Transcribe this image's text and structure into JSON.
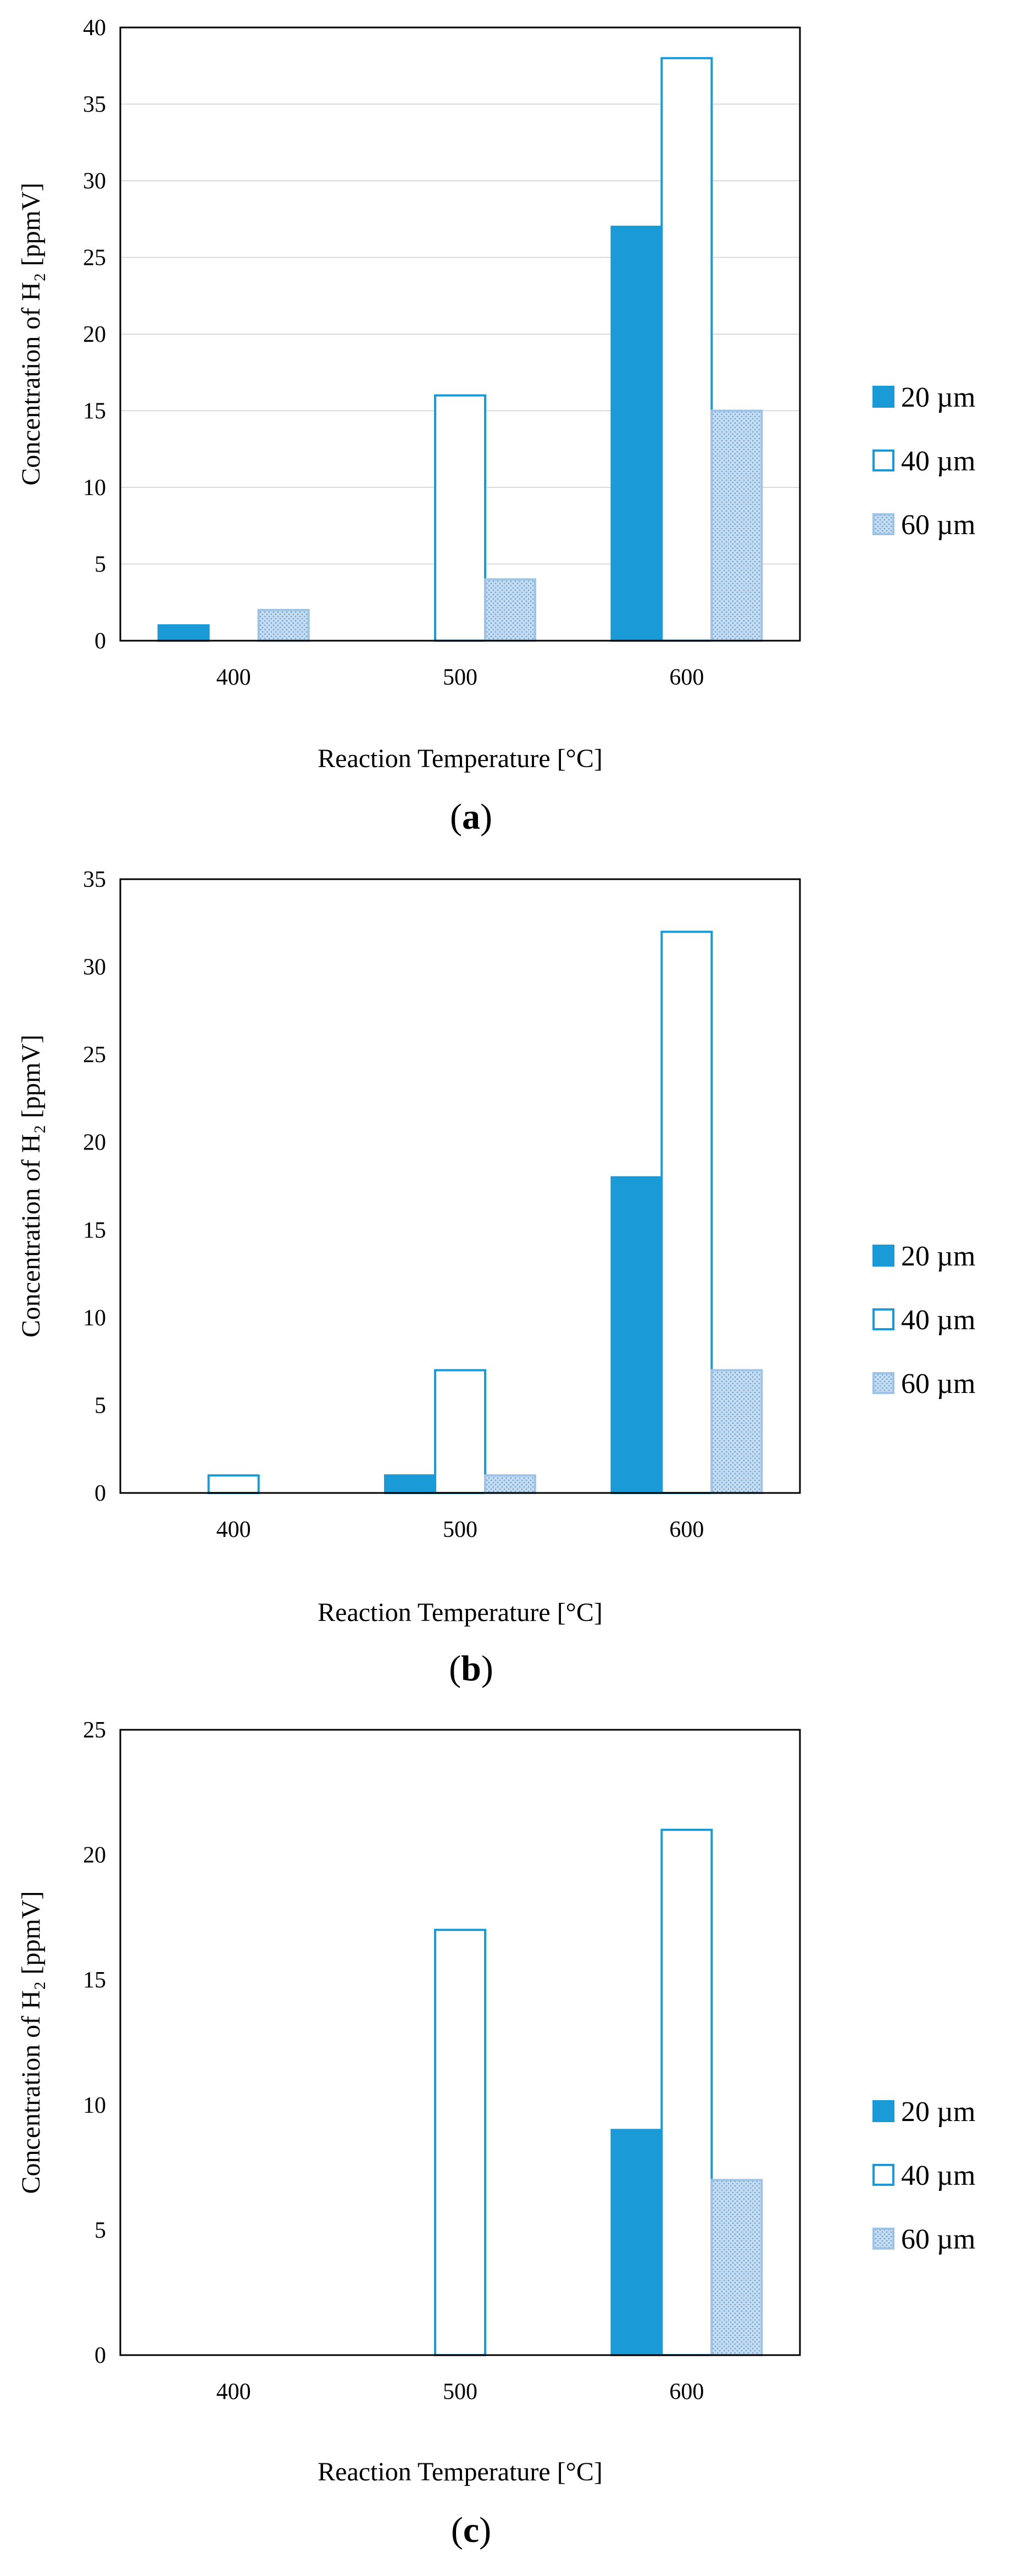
{
  "colors": {
    "series_20um": "#1a9bd7",
    "series_40um": "#ffffff",
    "series_40um_border": "#1a9bd7",
    "series_60um_pattern": "#9dc3e6",
    "axis": "#000000",
    "grid": "#d9d9d9"
  },
  "chart_data": [
    {
      "type": "bar",
      "panel_label": "a",
      "categories": [
        "400",
        "500",
        "600"
      ],
      "series": [
        {
          "name": "20 µm",
          "values": [
            1,
            0,
            27
          ]
        },
        {
          "name": "40 µm",
          "values": [
            0,
            16,
            38
          ]
        },
        {
          "name": "60 µm",
          "values": [
            2,
            4,
            15
          ]
        }
      ],
      "xlabel": "Reaction Temperature [°C]",
      "ylabel": "Concentration of H₂ [ppmV]",
      "ylim": [
        0,
        40
      ],
      "yticks": [
        "0",
        "5",
        "10",
        "15",
        "20",
        "25",
        "30",
        "35",
        "40"
      ],
      "grid": true,
      "legend_position": "right"
    },
    {
      "type": "bar",
      "panel_label": "b",
      "categories": [
        "400",
        "500",
        "600"
      ],
      "series": [
        {
          "name": "20 µm",
          "values": [
            0,
            1,
            18
          ]
        },
        {
          "name": "40 µm",
          "values": [
            1,
            7,
            32
          ]
        },
        {
          "name": "60 µm",
          "values": [
            0,
            1,
            7
          ]
        }
      ],
      "xlabel": "Reaction Temperature [°C]",
      "ylabel": "Concentration of H₂ [ppmV]",
      "ylim": [
        0,
        35
      ],
      "yticks": [
        "0",
        "5",
        "10",
        "15",
        "20",
        "25",
        "30",
        "35"
      ],
      "grid": false,
      "legend_position": "right"
    },
    {
      "type": "bar",
      "panel_label": "c",
      "categories": [
        "400",
        "500",
        "600"
      ],
      "series": [
        {
          "name": "20 µm",
          "values": [
            0,
            0,
            9
          ]
        },
        {
          "name": "40 µm",
          "values": [
            0,
            17,
            21
          ]
        },
        {
          "name": "60 µm",
          "values": [
            0,
            0,
            7
          ]
        }
      ],
      "xlabel": "Reaction Temperature [°C]",
      "ylabel": "Concentration of H₂ [ppmV]",
      "ylim": [
        0,
        25
      ],
      "yticks": [
        "0",
        "5",
        "10",
        "15",
        "20",
        "25"
      ],
      "grid": false,
      "legend_position": "right"
    }
  ]
}
